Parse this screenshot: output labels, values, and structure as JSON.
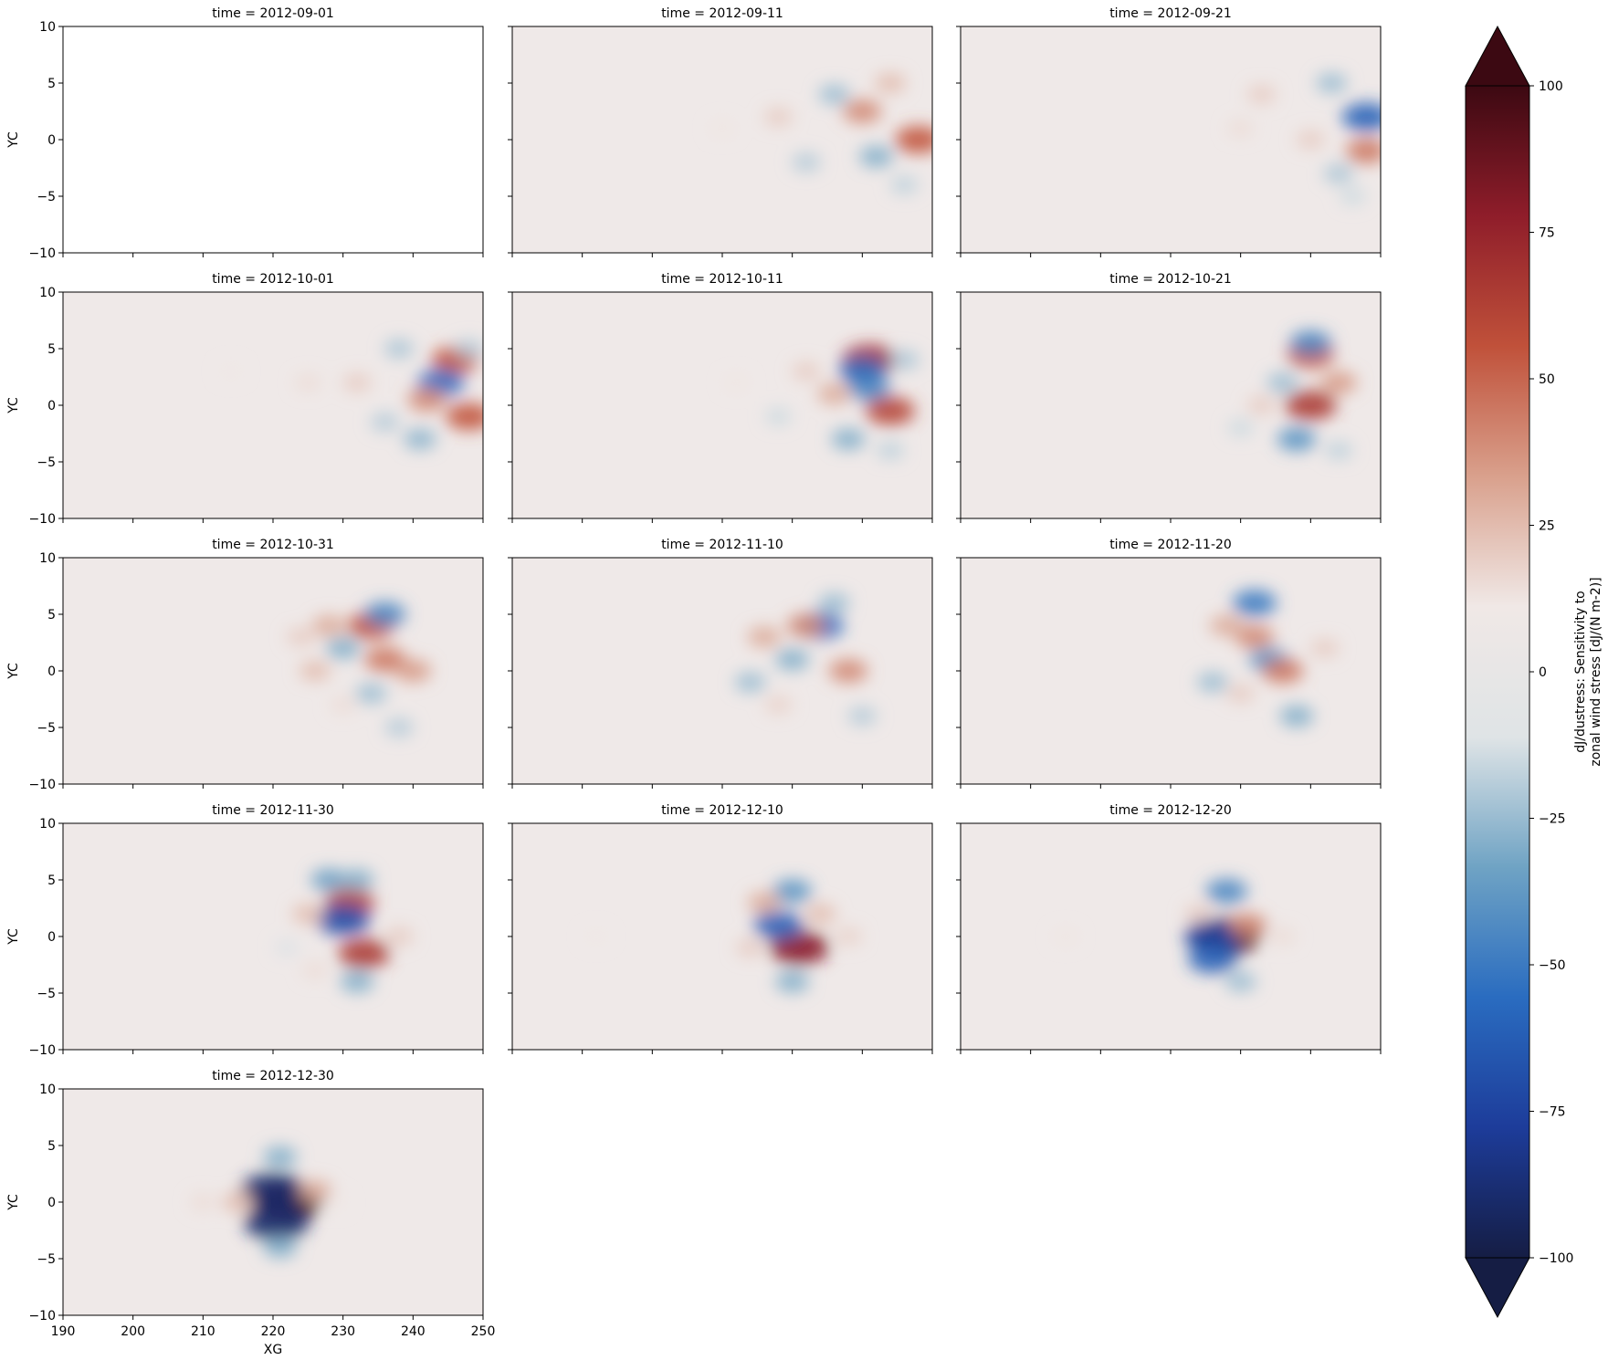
{
  "chart_data": {
    "type": "heatmap",
    "layout": "faceted grid, 3 columns, shared axes",
    "facet_title_prefix": "time = ",
    "xlabel": "XG",
    "ylabel": "YC",
    "xlim": [
      190,
      250
    ],
    "ylim": [
      -10,
      10
    ],
    "xticks": [
      190,
      200,
      210,
      220,
      230,
      240,
      250
    ],
    "yticks": [
      -10,
      -5,
      0,
      5,
      10
    ],
    "colormap": "balance (diverging: dark navy - blue - light gray - red - dark maroon)",
    "colormap_stops": [
      "#151d44",
      "#1d3c9a",
      "#2a6cc0",
      "#6fa3c4",
      "#dfe4e6",
      "#f0e8e6",
      "#d9a08c",
      "#c0513a",
      "#8f1d2a",
      "#3c0912"
    ],
    "colorbar": {
      "label_line1": "dJ/dustress: Sensitivity to",
      "label_line2": "zonal wind stress [dJ/(N m-2)]",
      "vmin": -100,
      "vmax": 100,
      "extend": "both",
      "ticks": [
        {
          "value": 100,
          "label": "100"
        },
        {
          "value": 75,
          "label": "75"
        },
        {
          "value": 50,
          "label": "50"
        },
        {
          "value": 25,
          "label": "25"
        },
        {
          "value": 0,
          "label": "0"
        },
        {
          "value": -25,
          "label": "−25"
        },
        {
          "value": -50,
          "label": "−50"
        },
        {
          "value": -75,
          "label": "−75"
        },
        {
          "value": -100,
          "label": "−100"
        }
      ]
    },
    "panels": [
      {
        "time": "2012-09-01",
        "blobs": []
      },
      {
        "time": "2012-09-11",
        "blobs": [
          {
            "x": 248,
            "y": 0,
            "v": 55
          },
          {
            "x": 240,
            "y": 2.5,
            "v": 40
          },
          {
            "x": 242,
            "y": -1.5,
            "v": -30
          },
          {
            "x": 236,
            "y": 4,
            "v": -25
          },
          {
            "x": 228,
            "y": 2,
            "v": 20
          },
          {
            "x": 232,
            "y": -2,
            "v": -20
          },
          {
            "x": 244,
            "y": 5,
            "v": 25
          },
          {
            "x": 220,
            "y": 1,
            "v": 12
          },
          {
            "x": 246,
            "y": -4,
            "v": -18
          }
        ]
      },
      {
        "time": "2012-09-21",
        "blobs": [
          {
            "x": 248,
            "y": 2,
            "v": -60
          },
          {
            "x": 248,
            "y": -1,
            "v": 45
          },
          {
            "x": 243,
            "y": 5,
            "v": -25
          },
          {
            "x": 240,
            "y": 0,
            "v": 20
          },
          {
            "x": 244,
            "y": -3,
            "v": -22
          },
          {
            "x": 233,
            "y": 4,
            "v": 20
          },
          {
            "x": 230,
            "y": 1,
            "v": 15
          },
          {
            "x": 246,
            "y": -5,
            "v": -15
          }
        ]
      },
      {
        "time": "2012-10-01",
        "blobs": [
          {
            "x": 246,
            "y": 4,
            "v": 55
          },
          {
            "x": 244,
            "y": 2,
            "v": -55
          },
          {
            "x": 248,
            "y": -1,
            "v": 55
          },
          {
            "x": 242,
            "y": 0.5,
            "v": 40
          },
          {
            "x": 241,
            "y": -3,
            "v": -28
          },
          {
            "x": 238,
            "y": 5,
            "v": -22
          },
          {
            "x": 232,
            "y": 2,
            "v": 20
          },
          {
            "x": 236,
            "y": -1.5,
            "v": -20
          },
          {
            "x": 225,
            "y": 2,
            "v": 15
          },
          {
            "x": 214,
            "y": 3,
            "v": 10
          },
          {
            "x": 248,
            "y": 5,
            "v": -20
          }
        ]
      },
      {
        "time": "2012-10-11",
        "blobs": [
          {
            "x": 241,
            "y": 4,
            "v": 70
          },
          {
            "x": 240,
            "y": 3,
            "v": -55
          },
          {
            "x": 241,
            "y": 1.5,
            "v": -45
          },
          {
            "x": 244,
            "y": -0.5,
            "v": 60
          },
          {
            "x": 238,
            "y": -3,
            "v": -30
          },
          {
            "x": 236,
            "y": 1,
            "v": 30
          },
          {
            "x": 246,
            "y": 4,
            "v": -22
          },
          {
            "x": 232,
            "y": 3,
            "v": 20
          },
          {
            "x": 228,
            "y": -1,
            "v": -15
          },
          {
            "x": 222,
            "y": 2,
            "v": 12
          },
          {
            "x": 244,
            "y": -4,
            "v": -18
          }
        ]
      },
      {
        "time": "2012-10-21",
        "blobs": [
          {
            "x": 240,
            "y": 4.5,
            "v": 55
          },
          {
            "x": 240,
            "y": 5.5,
            "v": -45
          },
          {
            "x": 240,
            "y": 0,
            "v": 65
          },
          {
            "x": 244,
            "y": 2,
            "v": 35
          },
          {
            "x": 238,
            "y": -3,
            "v": -40
          },
          {
            "x": 236,
            "y": 2,
            "v": -25
          },
          {
            "x": 233,
            "y": 0,
            "v": 20
          },
          {
            "x": 230,
            "y": -2,
            "v": -15
          },
          {
            "x": 244,
            "y": -4,
            "v": -18
          }
        ]
      },
      {
        "time": "2012-10-31",
        "blobs": [
          {
            "x": 234,
            "y": 4,
            "v": 55
          },
          {
            "x": 236,
            "y": 5,
            "v": -45
          },
          {
            "x": 236,
            "y": 1,
            "v": 45
          },
          {
            "x": 240,
            "y": 0,
            "v": 35
          },
          {
            "x": 230,
            "y": 2,
            "v": -30
          },
          {
            "x": 228,
            "y": 4,
            "v": 30
          },
          {
            "x": 226,
            "y": 0,
            "v": 25
          },
          {
            "x": 234,
            "y": -2,
            "v": -25
          },
          {
            "x": 238,
            "y": -5,
            "v": -20
          },
          {
            "x": 224,
            "y": 3,
            "v": 20
          },
          {
            "x": 230,
            "y": -3,
            "v": 15
          }
        ]
      },
      {
        "time": "2012-11-10",
        "blobs": [
          {
            "x": 234,
            "y": 4,
            "v": -55
          },
          {
            "x": 232,
            "y": 4,
            "v": 40
          },
          {
            "x": 238,
            "y": 0,
            "v": 40
          },
          {
            "x": 230,
            "y": 1,
            "v": -30
          },
          {
            "x": 226,
            "y": 3,
            "v": 30
          },
          {
            "x": 224,
            "y": -1,
            "v": -25
          },
          {
            "x": 236,
            "y": 6,
            "v": -25
          },
          {
            "x": 240,
            "y": -4,
            "v": -20
          },
          {
            "x": 228,
            "y": -3,
            "v": 18
          }
        ]
      },
      {
        "time": "2012-11-20",
        "blobs": [
          {
            "x": 232,
            "y": 6,
            "v": -50
          },
          {
            "x": 234,
            "y": 1,
            "v": -40
          },
          {
            "x": 236,
            "y": 0,
            "v": 45
          },
          {
            "x": 232,
            "y": 3,
            "v": 40
          },
          {
            "x": 228,
            "y": 4,
            "v": 30
          },
          {
            "x": 226,
            "y": -1,
            "v": -25
          },
          {
            "x": 238,
            "y": -4,
            "v": -30
          },
          {
            "x": 242,
            "y": 2,
            "v": 20
          },
          {
            "x": 230,
            "y": -2,
            "v": 20
          }
        ]
      },
      {
        "time": "2012-11-30",
        "blobs": [
          {
            "x": 231,
            "y": 3,
            "v": 60
          },
          {
            "x": 230,
            "y": 1.5,
            "v": -70
          },
          {
            "x": 233,
            "y": -1.5,
            "v": 65
          },
          {
            "x": 228,
            "y": 5,
            "v": -35
          },
          {
            "x": 232,
            "y": 5,
            "v": -30
          },
          {
            "x": 225,
            "y": 2,
            "v": 25
          },
          {
            "x": 232,
            "y": -4,
            "v": -30
          },
          {
            "x": 238,
            "y": 0,
            "v": 20
          },
          {
            "x": 226,
            "y": -3,
            "v": 15
          },
          {
            "x": 222,
            "y": -1,
            "v": -12
          }
        ]
      },
      {
        "time": "2012-12-10",
        "blobs": [
          {
            "x": 231,
            "y": -1,
            "v": 80
          },
          {
            "x": 228,
            "y": 1,
            "v": -60
          },
          {
            "x": 230,
            "y": 4,
            "v": -40
          },
          {
            "x": 226,
            "y": 3,
            "v": 30
          },
          {
            "x": 234,
            "y": 2,
            "v": 25
          },
          {
            "x": 230,
            "y": -4,
            "v": -30
          },
          {
            "x": 224,
            "y": -1,
            "v": 20
          },
          {
            "x": 238,
            "y": 0,
            "v": 18
          },
          {
            "x": 202,
            "y": 0,
            "v": 10
          }
        ]
      },
      {
        "time": "2012-12-20",
        "blobs": [
          {
            "x": 228,
            "y": 0,
            "v": 95
          },
          {
            "x": 226,
            "y": 0,
            "v": -75
          },
          {
            "x": 226,
            "y": -2,
            "v": -60
          },
          {
            "x": 228,
            "y": 4,
            "v": -45
          },
          {
            "x": 231,
            "y": 1,
            "v": 40
          },
          {
            "x": 224,
            "y": 2,
            "v": 20
          },
          {
            "x": 230,
            "y": -4,
            "v": -25
          },
          {
            "x": 236,
            "y": 0,
            "v": 15
          },
          {
            "x": 205,
            "y": 0,
            "v": 12
          }
        ]
      },
      {
        "time": "2012-12-30",
        "blobs": [
          {
            "x": 222,
            "y": 0,
            "v": 100
          },
          {
            "x": 220,
            "y": 1,
            "v": -90
          },
          {
            "x": 220.5,
            "y": -1.8,
            "v": -90
          },
          {
            "x": 221,
            "y": 4,
            "v": -30
          },
          {
            "x": 221,
            "y": -4,
            "v": -30
          },
          {
            "x": 215,
            "y": 0,
            "v": 25
          },
          {
            "x": 210,
            "y": 0,
            "v": 15
          },
          {
            "x": 226,
            "y": 1,
            "v": 30
          },
          {
            "x": 229,
            "y": 0,
            "v": 10
          }
        ]
      }
    ]
  }
}
